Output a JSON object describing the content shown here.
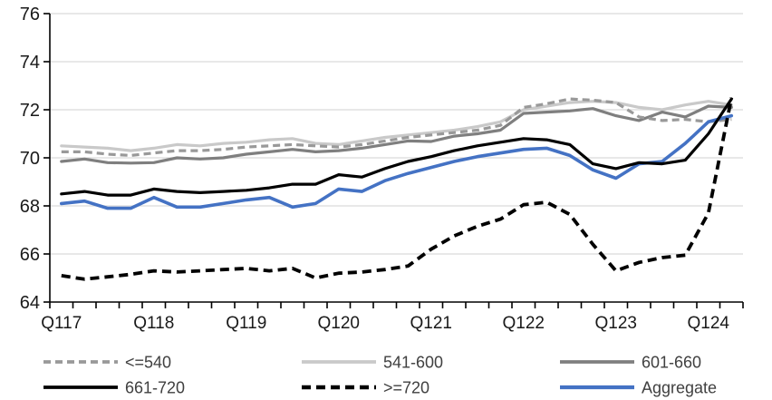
{
  "chart_data": {
    "type": "line",
    "title": "",
    "xlabel": "",
    "ylabel": "",
    "ylim": [
      64,
      76
    ],
    "ytick_step": 2,
    "y_tick_labels": [
      "64",
      "66",
      "68",
      "70",
      "72",
      "74",
      "76"
    ],
    "x_tick_labels": [
      "Q117",
      "Q118",
      "Q119",
      "Q120",
      "Q121",
      "Q122",
      "Q123",
      "Q124"
    ],
    "x_label_every": 4,
    "grid": "horizontal",
    "legend_position": "bottom",
    "x": [
      "2017Q1",
      "2017Q2",
      "2017Q3",
      "2017Q4",
      "2018Q1",
      "2018Q2",
      "2018Q3",
      "2018Q4",
      "2019Q1",
      "2019Q2",
      "2019Q3",
      "2019Q4",
      "2020Q1",
      "2020Q2",
      "2020Q3",
      "2020Q4",
      "2021Q1",
      "2021Q2",
      "2021Q3",
      "2021Q4",
      "2022Q1",
      "2022Q2",
      "2022Q3",
      "2022Q4",
      "2023Q1",
      "2023Q2",
      "2023Q3",
      "2023Q4",
      "2024Q1",
      "2024Q2"
    ],
    "series": [
      {
        "name": "<=540",
        "color": "#999999",
        "style": "dashed",
        "width": 3.2,
        "dash": "8 5",
        "values": [
          70.25,
          70.25,
          70.15,
          70.1,
          70.2,
          70.3,
          70.3,
          70.35,
          70.45,
          70.5,
          70.55,
          70.5,
          70.45,
          70.55,
          70.7,
          70.85,
          70.95,
          71.05,
          71.15,
          71.35,
          72.1,
          72.25,
          72.45,
          72.4,
          72.3,
          71.7,
          71.55,
          71.6,
          71.5,
          71.6
        ]
      },
      {
        "name": "541-600",
        "color": "#c9c9c9",
        "style": "solid",
        "width": 3.2,
        "dash": "",
        "values": [
          70.5,
          70.45,
          70.4,
          70.3,
          70.4,
          70.55,
          70.5,
          70.6,
          70.65,
          70.75,
          70.8,
          70.6,
          70.55,
          70.7,
          70.85,
          70.95,
          71.05,
          71.15,
          71.3,
          71.5,
          72.0,
          72.15,
          72.3,
          72.35,
          72.3,
          72.1,
          72.0,
          72.2,
          72.35,
          72.2
        ]
      },
      {
        "name": "601-660",
        "color": "#7f7f7f",
        "style": "solid",
        "width": 3.2,
        "dash": "",
        "values": [
          69.85,
          69.95,
          69.8,
          69.78,
          69.8,
          70.0,
          69.95,
          70.0,
          70.15,
          70.25,
          70.35,
          70.25,
          70.3,
          70.4,
          70.55,
          70.7,
          70.68,
          70.9,
          71.0,
          71.15,
          71.85,
          71.9,
          71.95,
          72.05,
          71.75,
          71.55,
          71.9,
          71.7,
          72.15,
          72.1
        ]
      },
      {
        "name": "661-720",
        "color": "#000000",
        "style": "solid",
        "width": 3.2,
        "dash": "",
        "values": [
          68.5,
          68.6,
          68.45,
          68.45,
          68.7,
          68.6,
          68.55,
          68.6,
          68.65,
          68.75,
          68.9,
          68.9,
          69.3,
          69.2,
          69.55,
          69.85,
          70.05,
          70.3,
          70.5,
          70.65,
          70.8,
          70.75,
          70.55,
          69.75,
          69.55,
          69.8,
          69.75,
          69.9,
          71.0,
          72.45
        ]
      },
      {
        "name": ">=720",
        "color": "#000000",
        "style": "dashed",
        "width": 3.8,
        "dash": "10 6",
        "values": [
          65.1,
          64.95,
          65.05,
          65.15,
          65.3,
          65.25,
          65.3,
          65.35,
          65.4,
          65.3,
          65.4,
          65.0,
          65.2,
          65.25,
          65.35,
          65.5,
          66.2,
          66.75,
          67.15,
          67.45,
          68.05,
          68.15,
          67.65,
          66.4,
          65.3,
          65.65,
          65.85,
          65.95,
          67.7,
          72.5
        ]
      },
      {
        "name": "Aggregate",
        "color": "#4472c4",
        "style": "solid",
        "width": 3.6,
        "dash": "",
        "values": [
          68.1,
          68.2,
          67.9,
          67.9,
          68.35,
          67.95,
          67.95,
          68.1,
          68.25,
          68.35,
          67.95,
          68.1,
          68.7,
          68.6,
          69.05,
          69.35,
          69.6,
          69.85,
          70.05,
          70.2,
          70.35,
          70.4,
          70.1,
          69.5,
          69.15,
          69.75,
          69.85,
          70.6,
          71.5,
          71.75
        ]
      }
    ],
    "draw_order": [
      1,
      2,
      0,
      5,
      3,
      4
    ],
    "legend": {
      "rows": [
        [
          {
            "series": 0,
            "label": "<=540"
          },
          {
            "series": 1,
            "label": "541-600"
          },
          {
            "series": 2,
            "label": "601-660"
          }
        ],
        [
          {
            "series": 3,
            "label": "661-720"
          },
          {
            "series": 4,
            "label": ">=720"
          },
          {
            "series": 5,
            "label": "Aggregate"
          }
        ]
      ]
    },
    "colors": {
      "grid": "#d9d9d9",
      "axis": "#000000",
      "tick_label": "#1a1a1a",
      "legend_text": "#404040"
    }
  }
}
